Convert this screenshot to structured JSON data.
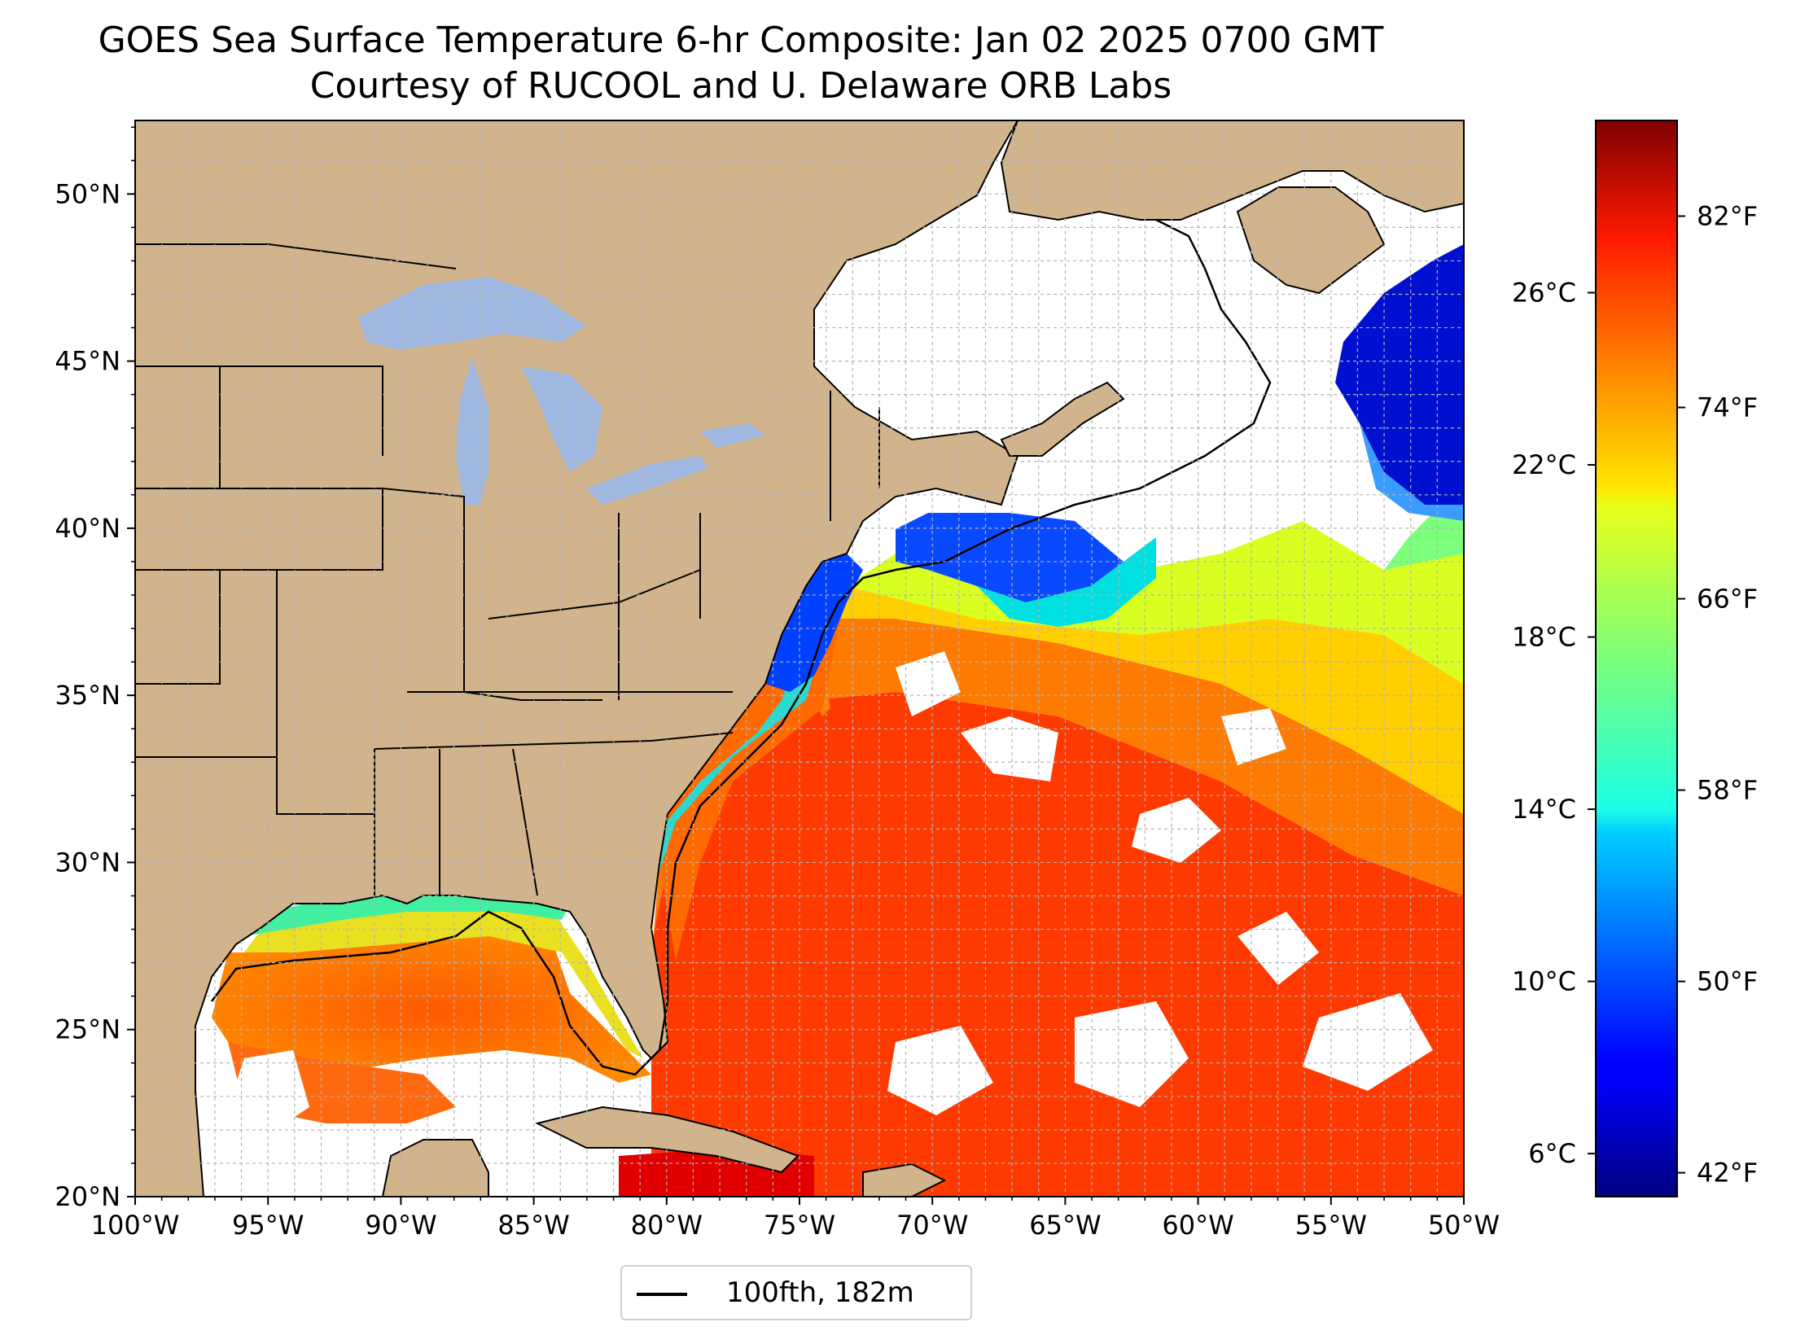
{
  "title": {
    "line1": "GOES Sea Surface Temperature 6-hr Composite: Jan 02 2025 0700 GMT",
    "line2": "Courtesy of RUCOOL and U. Delaware ORB Labs"
  },
  "map": {
    "lon_range": [
      -100,
      -50
    ],
    "lat_range": [
      20,
      52.2
    ],
    "lon_ticks": [
      "100°W",
      "95°W",
      "90°W",
      "85°W",
      "80°W",
      "75°W",
      "70°W",
      "65°W",
      "60°W",
      "55°W",
      "50°W"
    ],
    "lat_ticks": [
      "20°N",
      "25°N",
      "30°N",
      "35°N",
      "40°N",
      "45°N",
      "50°N"
    ],
    "lon_tick_values": [
      -100,
      -95,
      -90,
      -85,
      -80,
      -75,
      -70,
      -65,
      -60,
      -55,
      -50
    ],
    "lat_tick_values": [
      20,
      25,
      30,
      35,
      40,
      45,
      50
    ],
    "grid": true,
    "colors": {
      "land": "#d2b48c",
      "lakes": "#9fb9e2",
      "ocean_missing": "#ffffff",
      "boundaries": "#000000"
    }
  },
  "legend": {
    "label": "100fth, 182m",
    "position": "bottom-center"
  },
  "colorbar": {
    "colormap": "jet",
    "celsius_ticks": [
      "6°C",
      "10°C",
      "14°C",
      "18°C",
      "22°C",
      "26°C"
    ],
    "celsius_values": [
      6,
      10,
      14,
      18,
      22,
      26
    ],
    "fahrenheit_ticks": [
      "42°F",
      "50°F",
      "58°F",
      "66°F",
      "74°F",
      "82°F"
    ],
    "fahrenheit_values": [
      42,
      50,
      58,
      66,
      74,
      82
    ],
    "range_f": [
      41,
      86
    ]
  }
}
